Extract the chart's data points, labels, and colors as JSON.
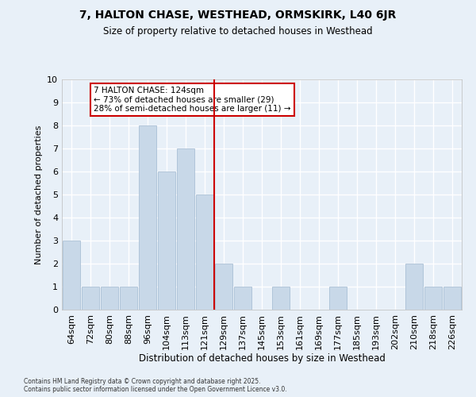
{
  "title": "7, HALTON CHASE, WESTHEAD, ORMSKIRK, L40 6JR",
  "subtitle": "Size of property relative to detached houses in Westhead",
  "xlabel": "Distribution of detached houses by size in Westhead",
  "ylabel": "Number of detached properties",
  "categories": [
    "64sqm",
    "72sqm",
    "80sqm",
    "88sqm",
    "96sqm",
    "104sqm",
    "113sqm",
    "121sqm",
    "129sqm",
    "137sqm",
    "145sqm",
    "153sqm",
    "161sqm",
    "169sqm",
    "177sqm",
    "185sqm",
    "193sqm",
    "202sqm",
    "210sqm",
    "218sqm",
    "226sqm"
  ],
  "values": [
    3,
    1,
    1,
    1,
    8,
    6,
    7,
    5,
    2,
    1,
    0,
    1,
    0,
    0,
    1,
    0,
    0,
    0,
    2,
    1,
    1
  ],
  "bar_color": "#c8d8e8",
  "bar_edgecolor": "#a0b8d0",
  "vline_x": 7.5,
  "vline_color": "#cc0000",
  "annotation_title": "7 HALTON CHASE: 124sqm",
  "annotation_line1": "← 73% of detached houses are smaller (29)",
  "annotation_line2": "28% of semi-detached houses are larger (11) →",
  "annotation_box_color": "#cc0000",
  "ylim": [
    0,
    10
  ],
  "yticks": [
    0,
    1,
    2,
    3,
    4,
    5,
    6,
    7,
    8,
    9,
    10
  ],
  "background_color": "#e8f0f8",
  "grid_color": "#ffffff",
  "footnote1": "Contains HM Land Registry data © Crown copyright and database right 2025.",
  "footnote2": "Contains public sector information licensed under the Open Government Licence v3.0."
}
